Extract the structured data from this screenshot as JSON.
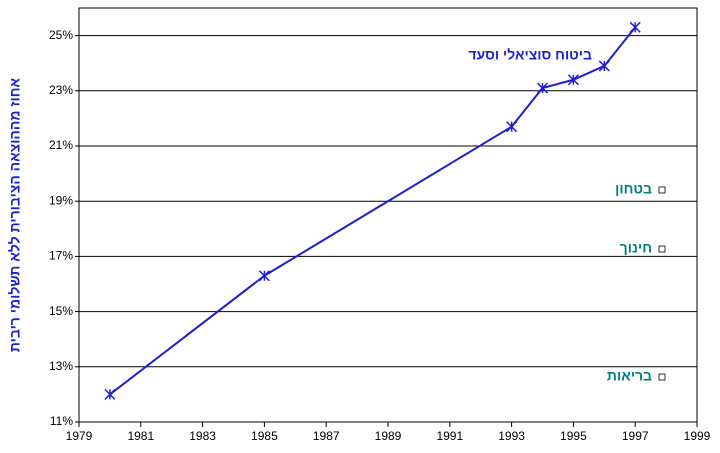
{
  "chart_data": {
    "type": "line",
    "y_label": "אחוז מההוצאה הציבורית ללא תשלומי ריבית",
    "series": [
      {
        "name": "ביטוח סוציאלי וסעד",
        "color": "#1f1fd0",
        "x": [
          1980,
          1985,
          1993,
          1994,
          1995,
          1996,
          1997
        ],
        "values": [
          12.0,
          16.3,
          21.7,
          23.1,
          23.4,
          23.9,
          25.3
        ]
      }
    ],
    "legend_items": [
      "בטחון",
      "חינוך",
      "בריאות"
    ],
    "legend_color": "#008080",
    "xlim": [
      1979,
      1999
    ],
    "xticks": [
      1979,
      1981,
      1983,
      1985,
      1987,
      1989,
      1991,
      1993,
      1995,
      1997,
      1999
    ],
    "ylim": [
      11,
      26
    ],
    "yticks": [
      {
        "value": 11,
        "label": "11%"
      },
      {
        "value": 13,
        "label": "13%"
      },
      {
        "value": 15,
        "label": "15%"
      },
      {
        "value": 17,
        "label": "17%"
      },
      {
        "value": 19,
        "label": "19%"
      },
      {
        "value": 21,
        "label": "21%"
      },
      {
        "value": 23,
        "label": "23%"
      },
      {
        "value": 25,
        "label": "25%"
      }
    ],
    "grid": true
  }
}
